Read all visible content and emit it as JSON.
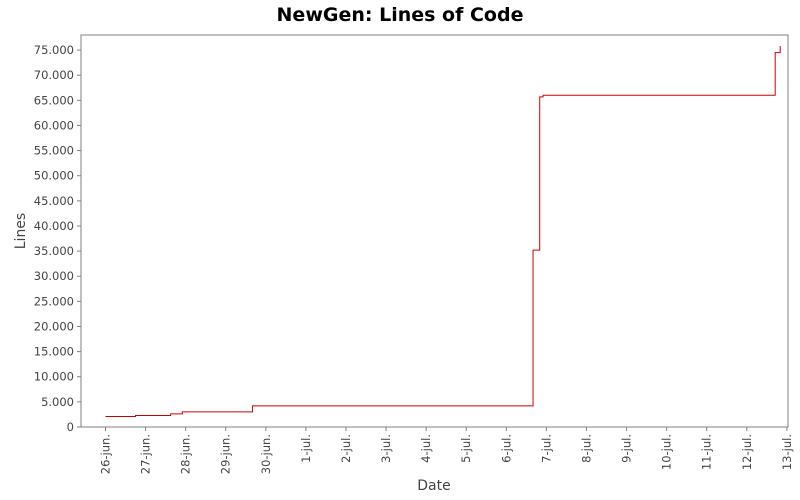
{
  "chart_data": {
    "type": "line",
    "title": "NewGen: Lines of Code",
    "xlabel": "Date",
    "ylabel": "Lines",
    "ylim": [
      0,
      78000
    ],
    "xlim": [
      "2005-06-25T09:20",
      "2005-07-13T00:40"
    ],
    "y_ticks": [
      {
        "value": 0,
        "label": "0"
      },
      {
        "value": 5000,
        "label": "5.000"
      },
      {
        "value": 10000,
        "label": "10.000"
      },
      {
        "value": 15000,
        "label": "15.000"
      },
      {
        "value": 20000,
        "label": "20.000"
      },
      {
        "value": 25000,
        "label": "25.000"
      },
      {
        "value": 30000,
        "label": "30.000"
      },
      {
        "value": 35000,
        "label": "35.000"
      },
      {
        "value": 40000,
        "label": "40.000"
      },
      {
        "value": 45000,
        "label": "45.000"
      },
      {
        "value": 50000,
        "label": "50.000"
      },
      {
        "value": 55000,
        "label": "55.000"
      },
      {
        "value": 60000,
        "label": "60.000"
      },
      {
        "value": 65000,
        "label": "65.000"
      },
      {
        "value": 70000,
        "label": "70.000"
      },
      {
        "value": 75000,
        "label": "75.000"
      }
    ],
    "x_ticks": [
      {
        "value": "2005-06-26",
        "label": "26-jun."
      },
      {
        "value": "2005-06-27",
        "label": "27-jun."
      },
      {
        "value": "2005-06-28",
        "label": "28-jun."
      },
      {
        "value": "2005-06-29",
        "label": "29-jun."
      },
      {
        "value": "2005-06-30",
        "label": "30-jun."
      },
      {
        "value": "2005-07-01",
        "label": "1-jul."
      },
      {
        "value": "2005-07-02",
        "label": "2-jul."
      },
      {
        "value": "2005-07-03",
        "label": "3-jul."
      },
      {
        "value": "2005-07-04",
        "label": "4-jul."
      },
      {
        "value": "2005-07-05",
        "label": "5-jul."
      },
      {
        "value": "2005-07-06",
        "label": "6-jul."
      },
      {
        "value": "2005-07-07",
        "label": "7-jul."
      },
      {
        "value": "2005-07-08",
        "label": "8-jul."
      },
      {
        "value": "2005-07-09",
        "label": "9-jul."
      },
      {
        "value": "2005-07-10",
        "label": "10-jul."
      },
      {
        "value": "2005-07-11",
        "label": "11-jul."
      },
      {
        "value": "2005-07-12",
        "label": "12-jul."
      },
      {
        "value": "2005-07-13",
        "label": "13-jul."
      }
    ],
    "series": [
      {
        "color": "#cc0000",
        "step": true,
        "points": [
          {
            "x": "2005-06-26T00:00",
            "y": 2100
          },
          {
            "x": "2005-06-26T18:00",
            "y": 2300
          },
          {
            "x": "2005-06-27T15:00",
            "y": 2600
          },
          {
            "x": "2005-06-27T22:00",
            "y": 3000
          },
          {
            "x": "2005-06-29T16:00",
            "y": 4200
          },
          {
            "x": "2005-07-06T16:00",
            "y": 35200
          },
          {
            "x": "2005-07-06T20:00",
            "y": 65700
          },
          {
            "x": "2005-07-06T22:00",
            "y": 66000
          },
          {
            "x": "2005-07-12T17:00",
            "y": 74500
          },
          {
            "x": "2005-07-12T20:00",
            "y": 75800
          }
        ]
      }
    ],
    "grid": false,
    "legend": "none"
  },
  "colors": {
    "background": "#ffffff",
    "plot_border": "#808080",
    "series": "#cc0000"
  }
}
